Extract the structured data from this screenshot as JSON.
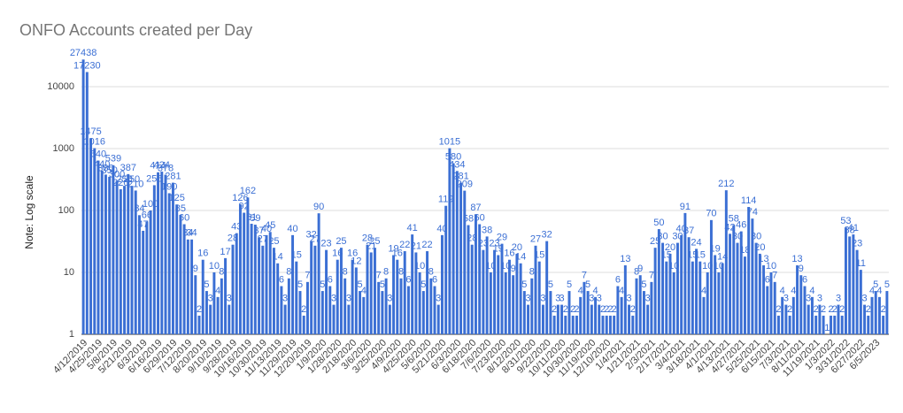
{
  "chart_data": {
    "type": "bar",
    "title": "ONFO Accounts created per Day",
    "y_label": "Note: Log scale",
    "color": "#3b6fd4",
    "log_scale": true,
    "grid": true,
    "ylim": [
      1,
      100000
    ],
    "yticks": [
      1,
      10,
      100,
      1000,
      10000
    ],
    "categories": [
      "4/12/2019",
      null,
      null,
      null,
      "4/25/2019",
      null,
      null,
      null,
      "5/8/2019",
      null,
      null,
      null,
      "5/21/2019",
      null,
      null,
      null,
      "6/3/2019",
      null,
      null,
      null,
      "6/16/2019",
      null,
      null,
      null,
      "6/29/2019",
      null,
      null,
      null,
      "7/12/2019",
      null,
      null,
      null,
      "8/20/2019",
      null,
      null,
      null,
      "9/10/2019",
      null,
      null,
      null,
      "9/28/2019",
      null,
      null,
      null,
      "10/16/2019",
      null,
      null,
      null,
      "10/30/2019",
      null,
      null,
      null,
      "11/13/2019",
      null,
      null,
      null,
      "11/29/2019",
      null,
      null,
      null,
      "12/20/2019",
      null,
      null,
      null,
      "1/9/2020",
      null,
      null,
      null,
      "1/28/2020",
      null,
      null,
      null,
      "2/18/2020",
      null,
      null,
      null,
      "3/6/2020",
      null,
      null,
      null,
      "3/25/2020",
      null,
      null,
      null,
      "4/9/2020",
      null,
      null,
      null,
      "4/25/2020",
      null,
      null,
      null,
      "5/6/2020",
      null,
      null,
      null,
      "5/21/2020",
      null,
      null,
      null,
      "6/3/2020",
      null,
      null,
      null,
      "6/18/2020",
      null,
      null,
      null,
      "7/6/2020",
      null,
      null,
      null,
      "7/23/2020",
      null,
      null,
      null,
      "8/12/2020",
      null,
      null,
      null,
      "8/31/2020",
      null,
      null,
      null,
      "9/22/2020",
      null,
      null,
      null,
      "10/11/2020",
      null,
      null,
      null,
      "10/30/2020",
      null,
      null,
      null,
      "11/19/2020",
      null,
      null,
      null,
      "12/10/2020",
      null,
      null,
      null,
      "1/4/2021",
      null,
      null,
      null,
      "1/21/2021",
      null,
      null,
      null,
      "2/3/2021",
      null,
      null,
      null,
      "2/17/2021",
      null,
      null,
      null,
      "3/4/2021",
      null,
      null,
      null,
      "3/18/2021",
      null,
      null,
      null,
      "4/1/2021",
      null,
      null,
      null,
      "4/13/2021",
      null,
      null,
      null,
      "4/27/2021",
      null,
      null,
      null,
      "5/25/2021",
      null,
      null,
      null,
      "6/15/2021",
      null,
      null,
      null,
      "7/3/2021",
      null,
      null,
      null,
      "8/11/2021",
      null,
      null,
      null,
      "11/19/2021",
      null,
      null,
      null,
      "1/3/2022",
      null,
      null,
      null,
      "3/31/2022",
      null,
      null,
      null,
      "6/27/2022",
      null,
      null,
      null,
      "6/5/2023",
      null,
      null,
      null
    ],
    "values": [
      27438,
      17230,
      1475,
      1016,
      640,
      440,
      380,
      350,
      539,
      300,
      220,
      250,
      387,
      250,
      210,
      84,
      47,
      66,
      100,
      256,
      414,
      424,
      378,
      190,
      281,
      125,
      85,
      60,
      34,
      34,
      9,
      2,
      16,
      5,
      3,
      10,
      4,
      8,
      17,
      3,
      28,
      43,
      126,
      92,
      162,
      61,
      59,
      37,
      27,
      40,
      45,
      25,
      14,
      6,
      3,
      8,
      40,
      15,
      5,
      2,
      7,
      32,
      27,
      90,
      5,
      23,
      6,
      3,
      16,
      25,
      8,
      3,
      16,
      12,
      5,
      4,
      28,
      21,
      25,
      7,
      5,
      8,
      3,
      19,
      16,
      8,
      22,
      6,
      41,
      21,
      10,
      5,
      22,
      8,
      6,
      3,
      40,
      119,
      1015,
      580,
      434,
      281,
      209,
      58,
      28,
      87,
      60,
      23,
      38,
      10,
      23,
      19,
      29,
      10,
      16,
      9,
      20,
      14,
      5,
      3,
      8,
      27,
      15,
      3,
      32,
      5,
      2,
      3,
      3,
      2,
      5,
      2,
      2,
      4,
      7,
      5,
      3,
      4,
      3,
      2,
      2,
      2,
      2,
      6,
      4,
      13,
      3,
      2,
      8,
      9,
      5,
      3,
      7,
      25,
      50,
      30,
      15,
      20,
      10,
      30,
      40,
      91,
      37,
      15,
      24,
      15,
      4,
      10,
      70,
      19,
      10,
      14,
      212,
      42,
      58,
      30,
      46,
      18,
      114,
      74,
      30,
      20,
      13,
      6,
      10,
      7,
      2,
      4,
      3,
      2,
      4,
      13,
      9,
      6,
      3,
      4,
      2,
      3,
      2,
      1,
      2,
      2,
      3,
      2,
      53,
      38,
      41,
      23,
      11,
      3,
      2,
      4,
      5,
      4,
      2,
      5
    ]
  }
}
